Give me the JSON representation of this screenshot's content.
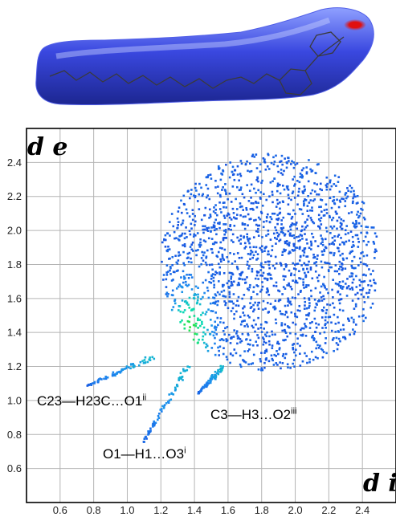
{
  "figure": {
    "annotations": [
      {
        "id": "a1",
        "text": "C23—H23C…O1",
        "sup": "ii"
      },
      {
        "id": "a2",
        "text": "C3—H3…O2",
        "sup": "iii"
      },
      {
        "id": "a3",
        "text": "O1—H1…O3",
        "sup": "i"
      }
    ],
    "axis_labels": {
      "x": "d i",
      "y": "d e"
    },
    "colors": {
      "frame": "#000000",
      "grid": "#b4b4b4",
      "surface_blue": "#2f3cd8",
      "contact_red": "#e01010"
    }
  },
  "chart_data": {
    "type": "heatmap",
    "title": "",
    "xlabel": "d i",
    "ylabel": "d e",
    "xlim": [
      0.4,
      2.6
    ],
    "ylim": [
      0.4,
      2.6
    ],
    "x_ticks": [
      0.6,
      0.8,
      1.0,
      1.2,
      1.4,
      1.6,
      1.8,
      2.0,
      2.2,
      2.4
    ],
    "y_ticks": [
      0.6,
      0.8,
      1.0,
      1.2,
      1.4,
      1.6,
      1.8,
      2.0,
      2.2,
      2.4
    ],
    "x_tick_labels": [
      "0.6",
      "0.8",
      "1.0",
      "1.2",
      "1.4",
      "1.6",
      "1.8",
      "2.0",
      "2.2",
      "2.4"
    ],
    "y_tick_labels": [
      "0.6",
      "0.8",
      "1.0",
      "1.2",
      "1.4",
      "1.6",
      "1.8",
      "2.0",
      "2.2",
      "2.4"
    ],
    "grid": true,
    "spikes": [
      {
        "name": "C23—H23C…O1ii",
        "from": [
          0.75,
          1.09
        ],
        "to": [
          1.14,
          1.26
        ]
      },
      {
        "name": "O1—H1…O3i",
        "from": [
          1.09,
          0.76
        ],
        "to": [
          1.36,
          1.22
        ]
      },
      {
        "name": "C3—H3…O2iii",
        "from": [
          1.42,
          1.05
        ],
        "to": [
          1.56,
          1.2
        ]
      }
    ],
    "region": {
      "di_range": [
        1.12,
        2.48
      ],
      "de_range": [
        1.12,
        2.48
      ],
      "hotspot": [
        1.37,
        1.42
      ]
    }
  }
}
